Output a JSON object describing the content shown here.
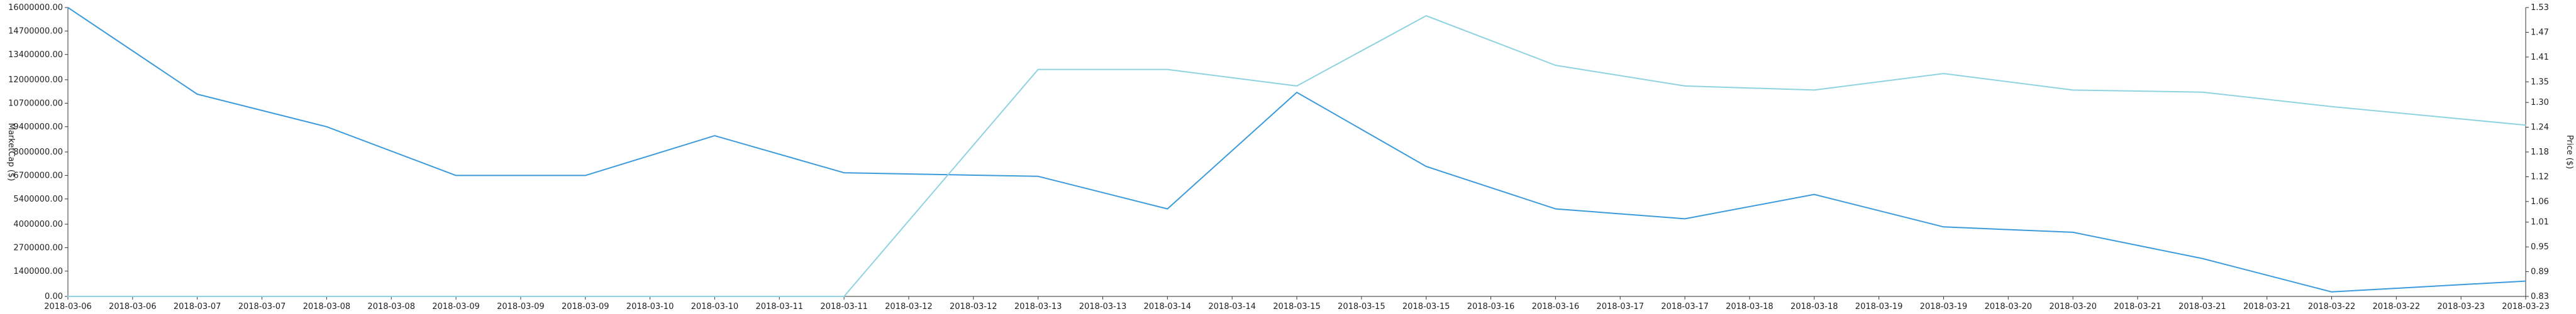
{
  "chart_data": {
    "type": "line",
    "colors": {
      "market_cap": "#3d9bdc",
      "price": "#8fd3e0"
    },
    "x_labels": [
      "2018-03-06",
      "2018-03-06",
      "2018-03-07",
      "2018-03-07",
      "2018-03-08",
      "2018-03-08",
      "2018-03-09",
      "2018-03-09",
      "2018-03-09",
      "2018-03-10",
      "2018-03-10",
      "2018-03-11",
      "2018-03-11",
      "2018-03-12",
      "2018-03-12",
      "2018-03-13",
      "2018-03-13",
      "2018-03-14",
      "2018-03-14",
      "2018-03-15",
      "2018-03-15",
      "2018-03-15",
      "2018-03-16",
      "2018-03-16",
      "2018-03-17",
      "2018-03-17",
      "2018-03-18",
      "2018-03-18",
      "2018-03-19",
      "2018-03-19",
      "2018-03-20",
      "2018-03-20",
      "2018-03-21",
      "2018-03-21",
      "2018-03-21",
      "2018-03-22",
      "2018-03-22",
      "2018-03-23",
      "2018-03-23"
    ],
    "left_axis": {
      "label": "MarketCap ($)",
      "ylim": [
        0,
        16000000
      ],
      "ticks": [
        "0.00",
        "1400000.00",
        "2700000.00",
        "4000000.00",
        "5400000.00",
        "6700000.00",
        "8000000.00",
        "9400000.00",
        "10700000.00",
        "12000000.00",
        "13400000.00",
        "14700000.00",
        "16000000.00"
      ]
    },
    "right_axis": {
      "label": "Price ($)",
      "ylim": [
        0.83,
        1.53
      ],
      "ticks": [
        "0.83",
        "0.89",
        "0.95",
        "1.01",
        "1.06",
        "1.12",
        "1.18",
        "1.24",
        "1.30",
        "1.35",
        "1.41",
        "1.47",
        "1.53"
      ]
    },
    "series": [
      {
        "axis": "left",
        "x_index": [
          0,
          2,
          4,
          6,
          8,
          10,
          12,
          15,
          17,
          19,
          21,
          23,
          25,
          27,
          29,
          31,
          33,
          35,
          37,
          38
        ],
        "values": [
          16000000,
          11200000,
          9400000,
          6700000,
          6700000,
          8900000,
          6850000,
          6650000,
          4850000,
          11300000,
          7200000,
          4850000,
          4300000,
          5650000,
          3850000,
          3550000,
          2100000,
          250000,
          650000,
          null
        ]
      },
      {
        "axis": "right",
        "x_index": [
          0,
          12,
          15,
          17,
          19,
          21,
          23,
          25,
          27,
          29,
          31,
          33,
          35,
          37,
          38
        ],
        "values": [
          0.83,
          0.83,
          1.38,
          1.38,
          1.34,
          1.51,
          1.39,
          1.34,
          1.33,
          1.37,
          1.33,
          1.325,
          1.29,
          1.26,
          null
        ]
      }
    ]
  }
}
